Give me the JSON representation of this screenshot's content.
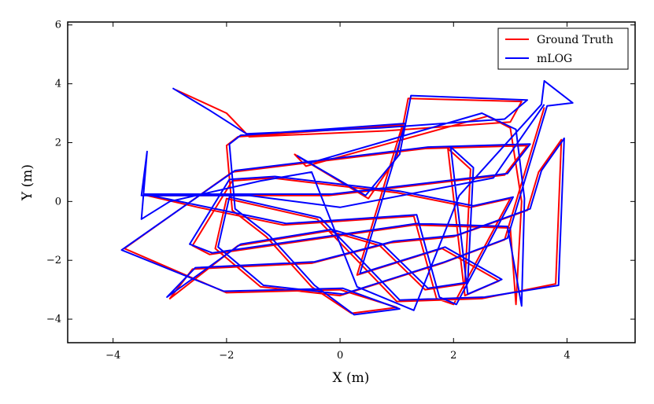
{
  "chart_data": {
    "type": "line",
    "xlabel": "X (m)",
    "ylabel": "Y (m)",
    "xlim": [
      -4.8,
      5.2
    ],
    "ylim": [
      -4.8,
      6.1
    ],
    "xticks": [
      -4,
      -2,
      0,
      2,
      4
    ],
    "yticks": [
      -4,
      -2,
      0,
      2,
      4,
      6
    ],
    "grid": false,
    "legend_position": "top-right",
    "series": [
      {
        "name": "Ground Truth",
        "color": "#ff0000",
        "points": [
          [
            -2.9,
            3.8
          ],
          [
            -2.0,
            3.0
          ],
          [
            -1.6,
            2.2
          ],
          [
            0.8,
            2.4
          ],
          [
            3.0,
            2.7
          ],
          [
            3.2,
            3.4
          ],
          [
            1.2,
            3.5
          ],
          [
            1.0,
            1.5
          ],
          [
            0.5,
            0.1
          ],
          [
            -0.8,
            1.6
          ],
          [
            -0.6,
            1.2
          ],
          [
            2.6,
            2.9
          ],
          [
            3.0,
            2.5
          ],
          [
            3.2,
            0.0
          ],
          [
            3.1,
            -3.5
          ],
          [
            3.0,
            -0.9
          ],
          [
            1.3,
            -0.8
          ],
          [
            -2.3,
            -1.8
          ],
          [
            -2.6,
            -1.5
          ],
          [
            -1.9,
            0.7
          ],
          [
            -1.2,
            0.8
          ],
          [
            1.0,
            0.3
          ],
          [
            2.3,
            -0.2
          ],
          [
            3.0,
            0.1
          ],
          [
            2.0,
            -3.5
          ],
          [
            1.7,
            -3.3
          ],
          [
            1.3,
            -0.5
          ],
          [
            -1.0,
            -0.8
          ],
          [
            -2.5,
            -0.2
          ],
          [
            -3.4,
            0.2
          ],
          [
            -0.2,
            0.2
          ],
          [
            2.9,
            0.9
          ],
          [
            3.3,
            1.9
          ],
          [
            1.5,
            1.8
          ],
          [
            -1.9,
            1.0
          ],
          [
            -3.8,
            -1.6
          ],
          [
            -2.0,
            -3.1
          ],
          [
            0.0,
            -3.0
          ],
          [
            1.0,
            -3.6
          ],
          [
            0.2,
            -3.8
          ],
          [
            -0.5,
            -2.9
          ],
          [
            -1.3,
            -1.2
          ],
          [
            -1.9,
            -0.3
          ],
          [
            -2.0,
            1.9
          ],
          [
            -1.8,
            2.2
          ],
          [
            1.1,
            2.6
          ],
          [
            0.8,
            0.7
          ],
          [
            0.3,
            -2.5
          ],
          [
            1.8,
            -1.6
          ],
          [
            2.8,
            -2.7
          ],
          [
            2.2,
            -3.2
          ],
          [
            1.9,
            1.8
          ],
          [
            2.3,
            1.1
          ],
          [
            2.2,
            -2.8
          ],
          [
            1.5,
            -3.0
          ],
          [
            0.7,
            -1.5
          ],
          [
            -0.2,
            -1.0
          ],
          [
            -1.8,
            -1.5
          ],
          [
            -3.0,
            -3.3
          ],
          [
            -2.6,
            -2.3
          ],
          [
            -0.5,
            -2.1
          ],
          [
            0.9,
            -1.4
          ],
          [
            2.0,
            -1.2
          ],
          [
            3.3,
            -0.3
          ],
          [
            3.5,
            1.0
          ],
          [
            3.9,
            2.1
          ],
          [
            3.8,
            -2.8
          ],
          [
            2.5,
            -3.3
          ],
          [
            1.0,
            -3.4
          ],
          [
            0.1,
            -1.6
          ],
          [
            -0.4,
            -0.6
          ],
          [
            -2.0,
            0.1
          ],
          [
            -2.2,
            -1.6
          ],
          [
            -1.4,
            -2.9
          ],
          [
            0.0,
            -3.2
          ],
          [
            1.8,
            -2.1
          ],
          [
            2.9,
            -1.3
          ],
          [
            3.6,
            3.2
          ]
        ]
      },
      {
        "name": "mLOG",
        "color": "#0000ff",
        "points": [
          [
            -2.95,
            3.85
          ],
          [
            -2.3,
            3.1
          ],
          [
            -1.65,
            2.3
          ],
          [
            0.7,
            2.5
          ],
          [
            2.9,
            2.8
          ],
          [
            3.3,
            3.45
          ],
          [
            1.25,
            3.6
          ],
          [
            1.05,
            1.6
          ],
          [
            0.45,
            0.2
          ],
          [
            -0.75,
            1.55
          ],
          [
            -0.55,
            1.3
          ],
          [
            2.5,
            3.0
          ],
          [
            3.1,
            2.45
          ],
          [
            3.25,
            0.1
          ],
          [
            3.2,
            -3.55
          ],
          [
            2.95,
            -0.85
          ],
          [
            1.35,
            -0.75
          ],
          [
            -2.25,
            -1.75
          ],
          [
            -2.65,
            -1.45
          ],
          [
            -1.95,
            0.75
          ],
          [
            -1.15,
            0.85
          ],
          [
            1.05,
            0.35
          ],
          [
            2.35,
            -0.15
          ],
          [
            3.05,
            0.15
          ],
          [
            2.05,
            -3.5
          ],
          [
            1.75,
            -3.25
          ],
          [
            1.35,
            -0.45
          ],
          [
            -0.95,
            -0.75
          ],
          [
            -2.45,
            -0.15
          ],
          [
            -3.45,
            0.25
          ],
          [
            -0.15,
            0.25
          ],
          [
            2.95,
            0.95
          ],
          [
            3.35,
            1.95
          ],
          [
            1.55,
            1.85
          ],
          [
            -1.85,
            1.05
          ],
          [
            -3.85,
            -1.65
          ],
          [
            -2.05,
            -3.05
          ],
          [
            0.05,
            -2.95
          ],
          [
            1.05,
            -3.65
          ],
          [
            0.25,
            -3.85
          ],
          [
            -0.45,
            -2.85
          ],
          [
            -1.25,
            -1.15
          ],
          [
            -1.85,
            -0.25
          ],
          [
            -1.95,
            1.95
          ],
          [
            -1.75,
            2.25
          ],
          [
            1.15,
            2.65
          ],
          [
            0.85,
            0.75
          ],
          [
            0.35,
            -2.45
          ],
          [
            1.85,
            -1.55
          ],
          [
            2.85,
            -2.65
          ],
          [
            2.25,
            -3.15
          ],
          [
            1.95,
            1.85
          ],
          [
            2.35,
            1.15
          ],
          [
            2.25,
            -2.75
          ],
          [
            1.55,
            -2.95
          ],
          [
            0.75,
            -1.45
          ],
          [
            -0.15,
            -0.95
          ],
          [
            -1.75,
            -1.45
          ],
          [
            -3.05,
            -3.25
          ],
          [
            -2.55,
            -2.25
          ],
          [
            -0.45,
            -2.05
          ],
          [
            0.95,
            -1.35
          ],
          [
            2.05,
            -1.15
          ],
          [
            3.35,
            -0.25
          ],
          [
            3.55,
            1.05
          ],
          [
            3.95,
            2.15
          ],
          [
            3.85,
            -2.85
          ],
          [
            2.55,
            -3.25
          ],
          [
            1.05,
            -3.35
          ],
          [
            0.15,
            -1.55
          ],
          [
            -0.35,
            -0.55
          ],
          [
            -1.95,
            0.15
          ],
          [
            -2.15,
            -1.55
          ],
          [
            -1.35,
            -2.85
          ],
          [
            0.05,
            -3.15
          ],
          [
            1.85,
            -2.05
          ],
          [
            2.95,
            -1.25
          ],
          [
            3.65,
            3.25
          ],
          [
            4.1,
            3.35
          ],
          [
            3.6,
            4.1
          ],
          [
            3.55,
            3.3
          ],
          [
            2.1,
            0.2
          ],
          [
            1.3,
            -3.7
          ],
          [
            0.3,
            -2.9
          ],
          [
            -0.5,
            1.0
          ],
          [
            -1.4,
            0.7
          ],
          [
            -3.0,
            0.0
          ],
          [
            -3.5,
            -0.6
          ],
          [
            -3.4,
            1.7
          ],
          [
            -3.5,
            0.2
          ],
          [
            -1.6,
            0.2
          ],
          [
            0.0,
            -0.2
          ],
          [
            2.7,
            0.8
          ],
          [
            3.6,
            3.3
          ]
        ]
      }
    ]
  }
}
